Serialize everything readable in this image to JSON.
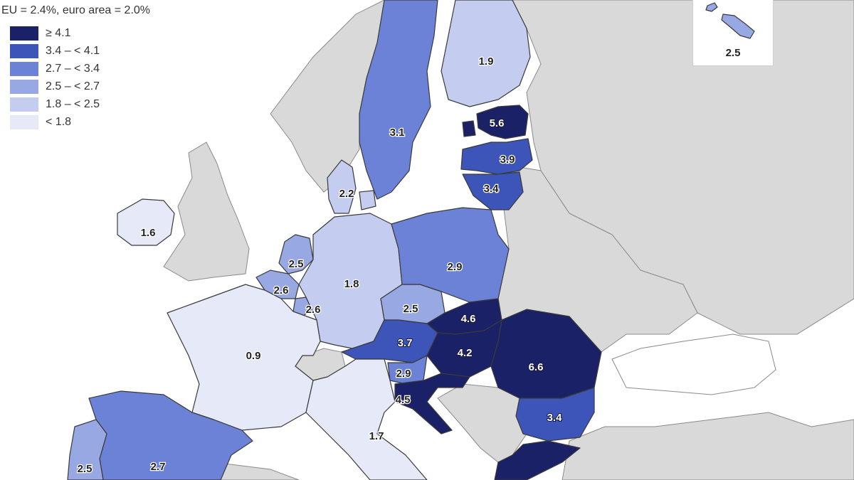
{
  "legend": {
    "title": "EU = 2.4%, euro area = 2.0%",
    "items": [
      {
        "label": "≥ 4.1",
        "color": "#1b2166"
      },
      {
        "label": "3.4 – < 4.1",
        "color": "#3d54b8"
      },
      {
        "label": "2.7 – < 3.4",
        "color": "#6b82d6"
      },
      {
        "label": "2.5 – < 2.7",
        "color": "#97a8e3"
      },
      {
        "label": "1.8 – < 2.5",
        "color": "#c4cdef"
      },
      {
        "label": "< 1.8",
        "color": "#e6e9f8"
      }
    ]
  },
  "countries": [
    {
      "id": "finland",
      "value": "1.9",
      "bin": 4
    },
    {
      "id": "sweden",
      "value": "3.1",
      "bin": 2
    },
    {
      "id": "estonia",
      "value": "5.6",
      "bin": 0
    },
    {
      "id": "latvia",
      "value": "3.9",
      "bin": 1
    },
    {
      "id": "lithuania",
      "value": "3.4",
      "bin": 1
    },
    {
      "id": "denmark",
      "value": "2.2",
      "bin": 4
    },
    {
      "id": "ireland",
      "value": "1.6",
      "bin": 5
    },
    {
      "id": "netherlands",
      "value": "2.5",
      "bin": 3
    },
    {
      "id": "belgium",
      "value": "2.6",
      "bin": 3
    },
    {
      "id": "luxembourg",
      "value": "2.6",
      "bin": 3
    },
    {
      "id": "germany",
      "value": "1.8",
      "bin": 4
    },
    {
      "id": "poland",
      "value": "2.9",
      "bin": 2
    },
    {
      "id": "czechia",
      "value": "2.5",
      "bin": 3
    },
    {
      "id": "slovakia",
      "value": "4.6",
      "bin": 0
    },
    {
      "id": "austria",
      "value": "3.7",
      "bin": 1
    },
    {
      "id": "hungary",
      "value": "4.2",
      "bin": 0
    },
    {
      "id": "romania",
      "value": "6.6",
      "bin": 0
    },
    {
      "id": "slovenia",
      "value": "2.9",
      "bin": 2
    },
    {
      "id": "croatia",
      "value": "4.5",
      "bin": 0
    },
    {
      "id": "bulgaria",
      "value": "3.4",
      "bin": 1
    },
    {
      "id": "france",
      "value": "0.9",
      "bin": 5
    },
    {
      "id": "italy",
      "value": "1.7",
      "bin": 5
    },
    {
      "id": "spain",
      "value": "2.7",
      "bin": 2
    },
    {
      "id": "portugal",
      "value": "2.5",
      "bin": 3
    },
    {
      "id": "greece",
      "value": "",
      "bin": 0
    }
  ],
  "inset": {
    "country": "malta",
    "value": "2.5",
    "bin": 3
  }
}
